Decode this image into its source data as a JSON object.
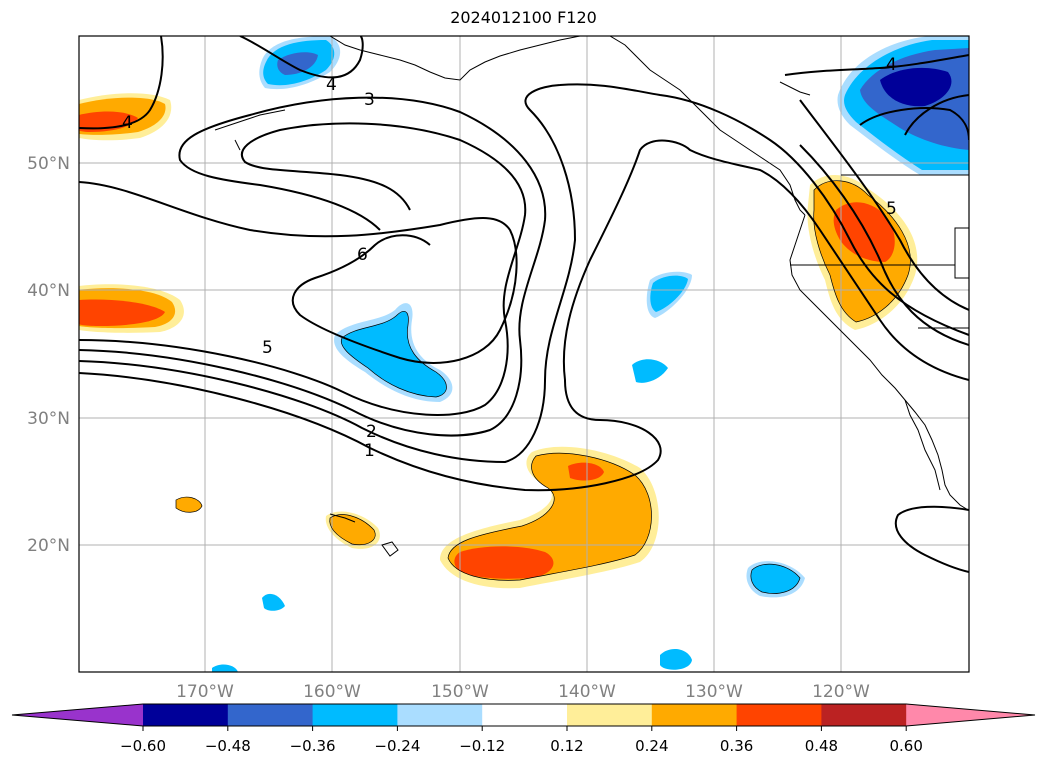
{
  "title": "2024012100 F120",
  "lat_labels": [
    "50°N",
    "40°N",
    "30°N",
    "20°N"
  ],
  "lon_labels": [
    "170°W",
    "160°W",
    "150°W",
    "140°W",
    "130°W",
    "120°W"
  ],
  "contour_labels": [
    "1",
    "2",
    "3",
    "4",
    "4",
    "4",
    "5",
    "6",
    "5"
  ],
  "colorbar": {
    "colors": [
      "#9933cc",
      "#000099",
      "#3366cc",
      "#00bbff",
      "#aaddff",
      "#ffffff",
      "#ffee99",
      "#ffaa00",
      "#ff4400",
      "#bb2222",
      "#ff88aa"
    ],
    "tick_labels": [
      "−0.60",
      "−0.48",
      "−0.36",
      "−0.24",
      "−0.12",
      "0.12",
      "0.24",
      "0.36",
      "0.48",
      "0.60"
    ]
  }
}
